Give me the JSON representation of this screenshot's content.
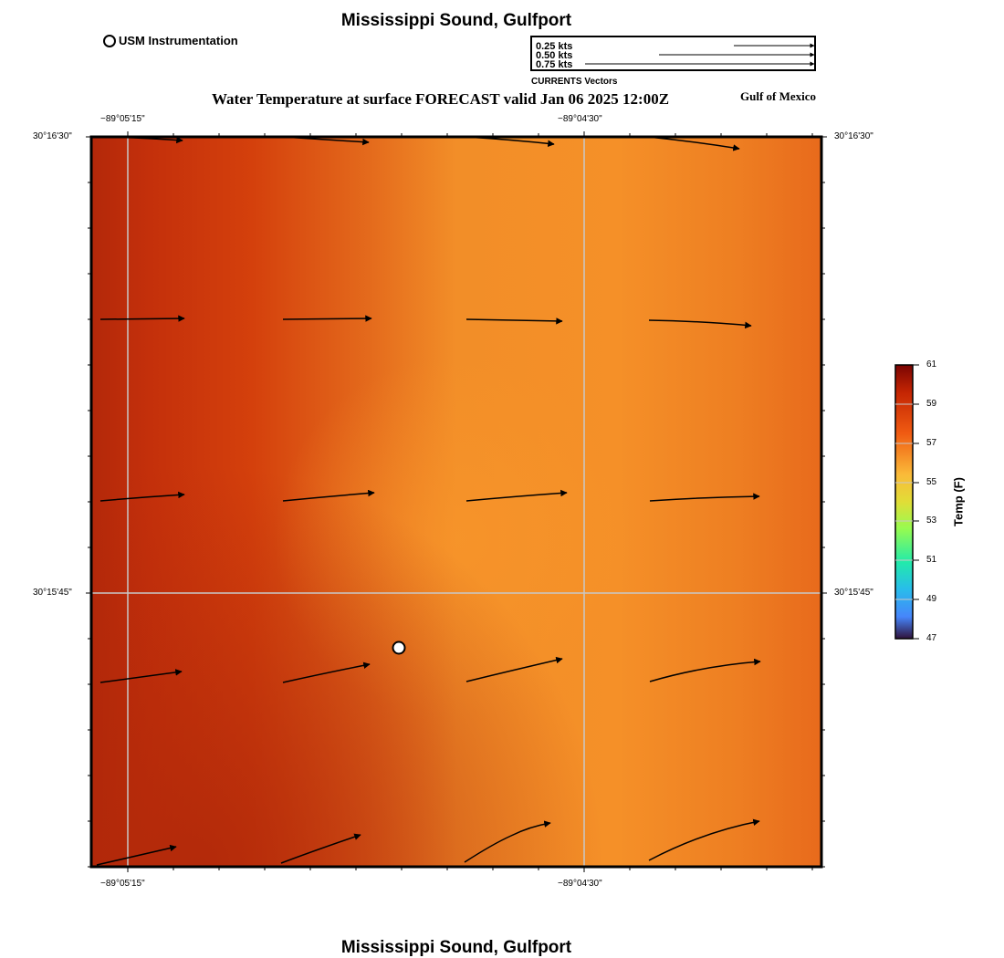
{
  "header": {
    "title": "Mississippi Sound, Gulfport",
    "usm_label": "USM Instrumentation",
    "subtitle": "Water Temperature at surface FORECAST valid Jan 06 2025 12:00Z",
    "region": "Gulf of Mexico"
  },
  "footer": {
    "title": "Mississippi Sound, Gulfport"
  },
  "current_legend": {
    "title": "CURRENTS Vectors",
    "entries": [
      "0.25 kts",
      "0.50 kts",
      "0.75 kts"
    ]
  },
  "axes": {
    "lon_ticks": [
      "−89°05'15\"",
      "−89°04'30\""
    ],
    "lat_ticks": [
      "30°16'30\"",
      "30°15'45\""
    ]
  },
  "colorbar": {
    "label": "Temp (F)",
    "ticks": [
      "61",
      "59",
      "57",
      "55",
      "53",
      "51",
      "49",
      "47"
    ],
    "min": 47,
    "max": 61
  },
  "colors": {
    "dark_red": "#b0280a",
    "red_orange": "#d4400c",
    "orange": "#f59028",
    "grid": "#c8c8c8",
    "vector": "#000000"
  },
  "instrument_icon": "circle-marker-icon"
}
